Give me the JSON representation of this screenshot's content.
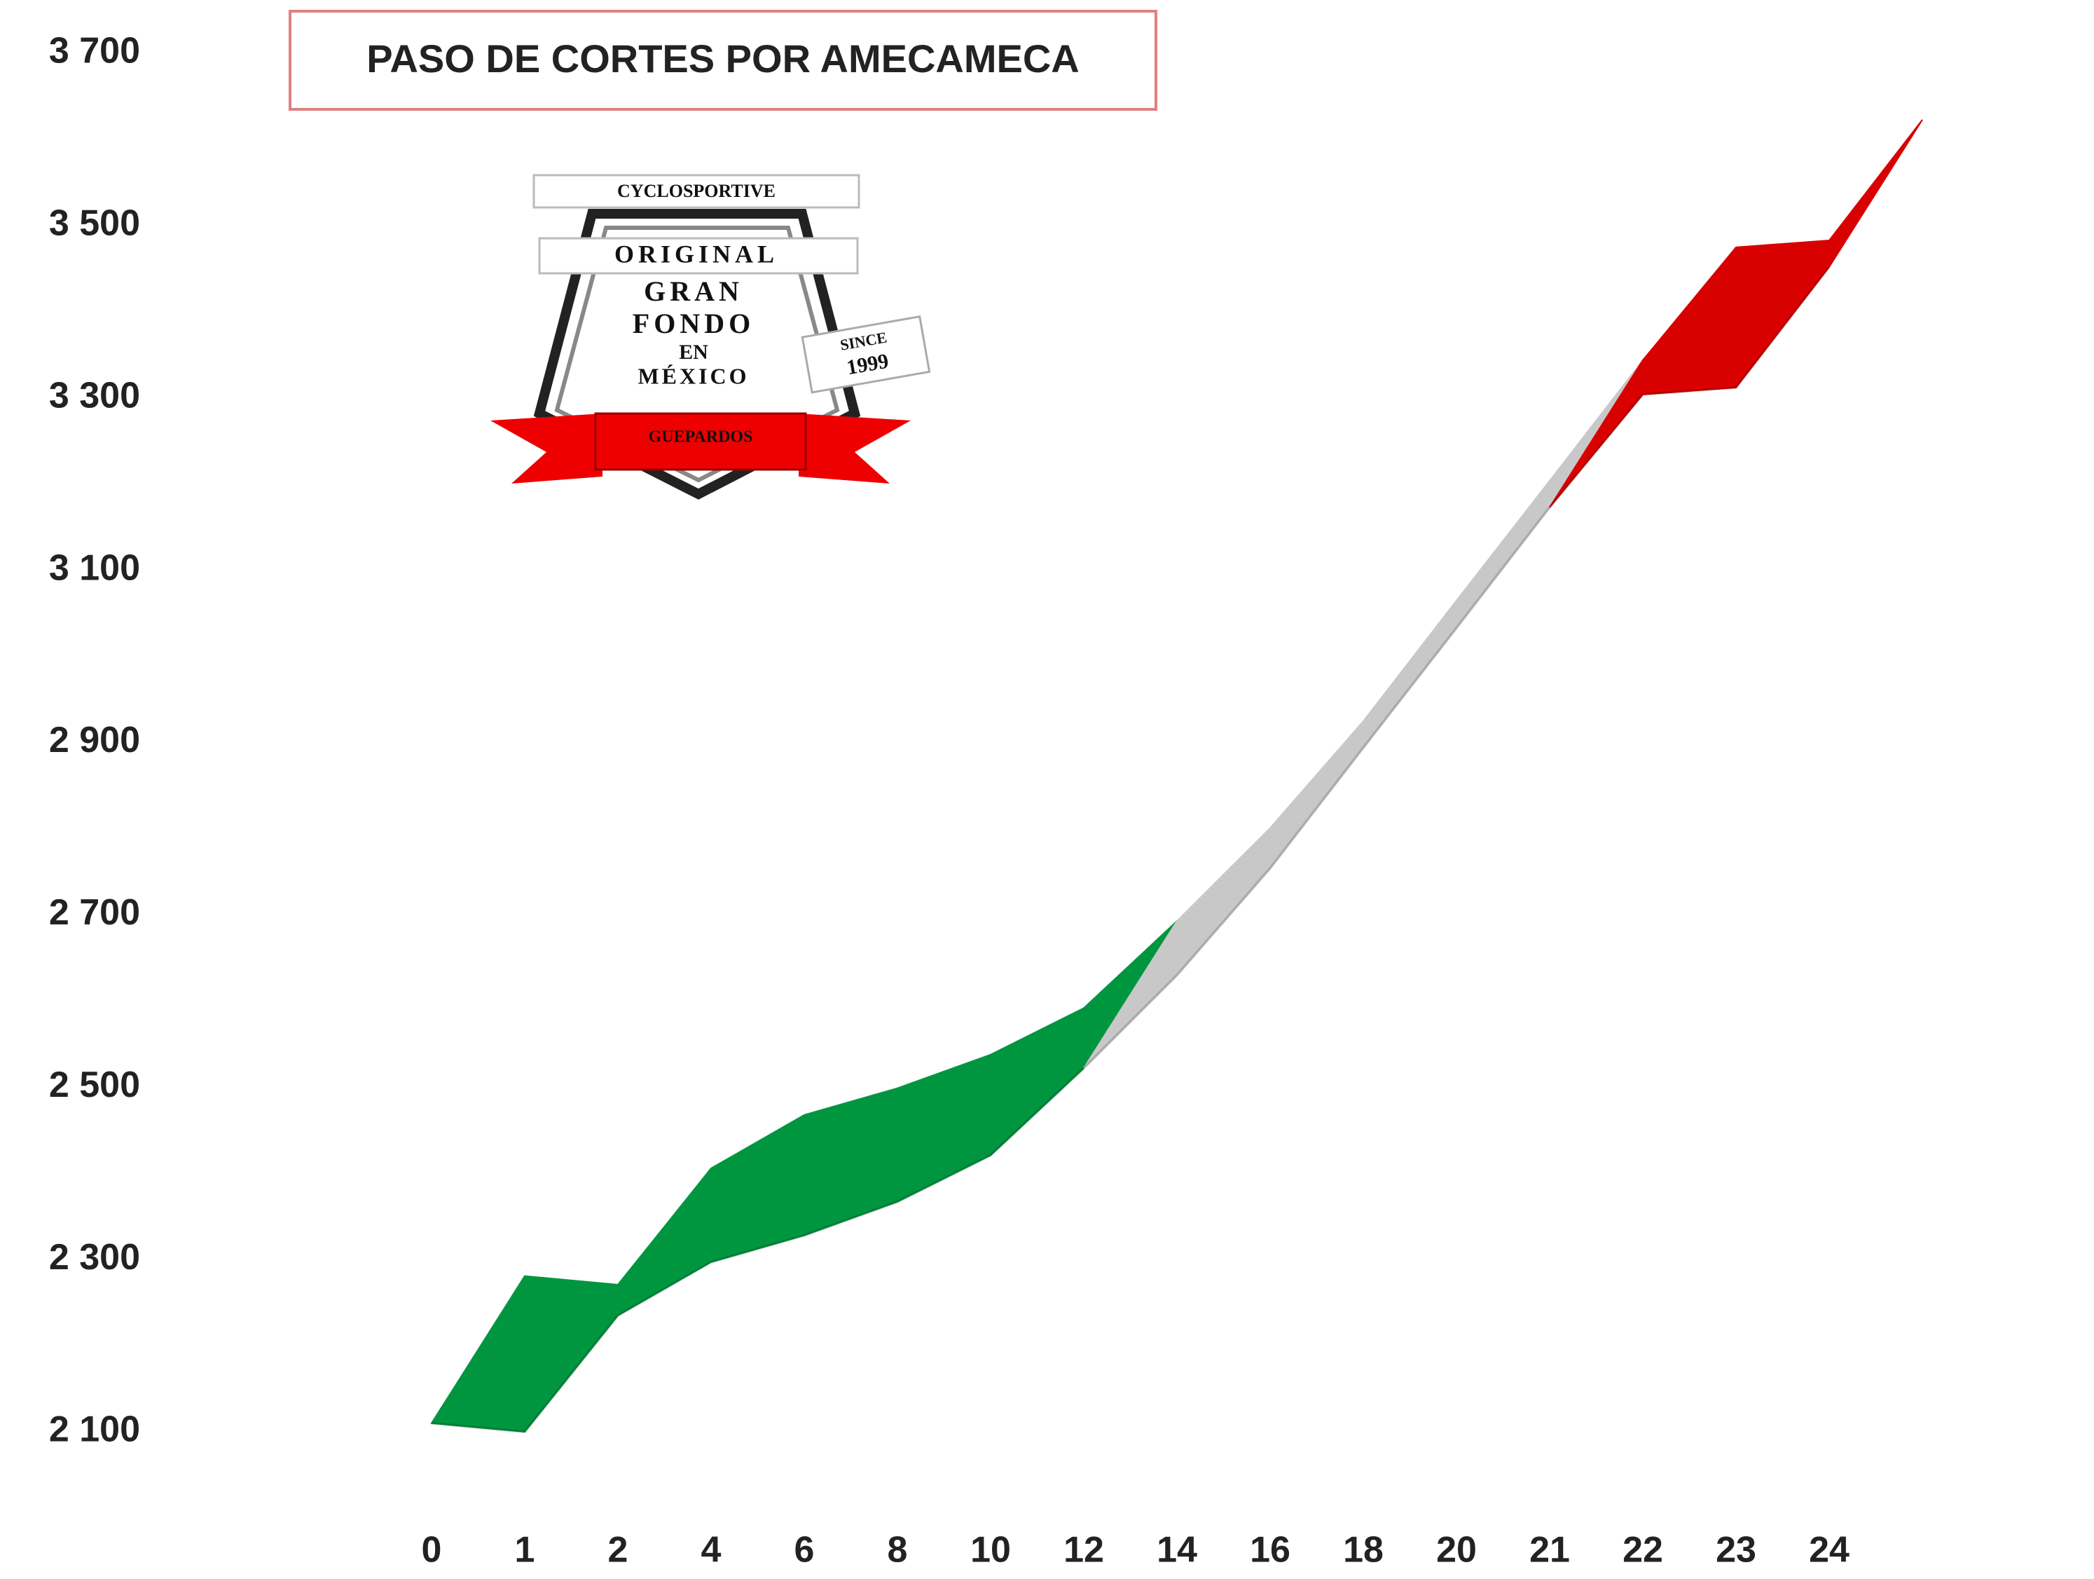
{
  "chart_data": {
    "type": "ribbon",
    "title": "PASO DE CORTES POR AMECAMECA",
    "categories": [
      "0",
      "1",
      "2",
      "4",
      "6",
      "8",
      "10",
      "12",
      "14",
      "16",
      "18",
      "20",
      "21",
      "22",
      "23",
      "24"
    ],
    "series": [
      {
        "color": "#009640",
        "values": [
          2110,
          2100,
          2235,
          2297,
          2328,
          2367,
          2421,
          2522,
          null,
          null,
          null,
          null,
          null,
          null,
          null,
          null
        ]
      },
      {
        "color": "#c8c8c8",
        "values": [
          null,
          null,
          null,
          null,
          null,
          null,
          null,
          2522,
          2630,
          2754,
          2894,
          3033,
          3173,
          null,
          null,
          null
        ]
      },
      {
        "color": "#d90000",
        "values": [
          null,
          null,
          null,
          null,
          null,
          null,
          null,
          null,
          null,
          null,
          null,
          null,
          3173,
          3304,
          3312,
          3452
        ]
      }
    ],
    "ylim": [
      2100,
      3700
    ],
    "yticks": [
      {
        "value": 2100,
        "label": "2 100"
      },
      {
        "value": 2300,
        "label": "2 300"
      },
      {
        "value": 2500,
        "label": "2 500"
      },
      {
        "value": 2700,
        "label": "2 700"
      },
      {
        "value": 2900,
        "label": "2 900"
      },
      {
        "value": 3100,
        "label": "3 100"
      },
      {
        "value": 3300,
        "label": "3 300"
      },
      {
        "value": 3500,
        "label": "3 500"
      },
      {
        "value": 3700,
        "label": "3 700"
      }
    ],
    "grid": false
  },
  "logo": {
    "top": "CYCLOSPORTIVE",
    "line1": "ORIGINAL",
    "line2": "GRAN",
    "line3": "FONDO",
    "line4": "EN",
    "line5": "MÉXICO",
    "since": "SINCE",
    "year": "1999",
    "banner": "GUEPARDOS"
  }
}
